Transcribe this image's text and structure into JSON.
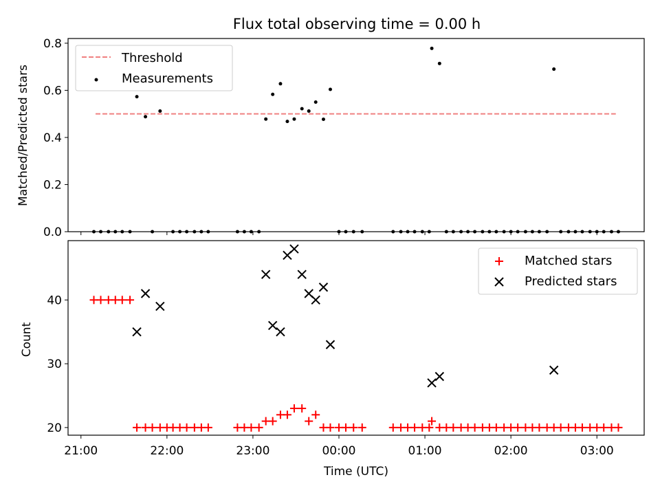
{
  "chart_data": [
    {
      "type": "scatter",
      "title": "Flux total observing time = 0.00 h",
      "ylabel": "Matched/Predicted stars",
      "xlabel": "",
      "ylim": [
        0,
        0.82
      ],
      "yticks": [
        0.0,
        0.2,
        0.4,
        0.6,
        0.8
      ],
      "ytick_labels": [
        "0.0",
        "0.2",
        "0.4",
        "0.6",
        "0.8"
      ],
      "grid": false,
      "legend_position": "top-left",
      "legend": [
        "Threshold",
        "Measurements"
      ],
      "threshold": {
        "name": "Threshold",
        "value": 0.5,
        "x_range": [
          21.17,
          27.22
        ],
        "color": "#f08080",
        "style": "dashed"
      },
      "series": [
        {
          "name": "Measurements",
          "color": "#000000",
          "points": [
            [
              21.15,
              0
            ],
            [
              21.23,
              0
            ],
            [
              21.32,
              0
            ],
            [
              21.4,
              0
            ],
            [
              21.48,
              0
            ],
            [
              21.57,
              0
            ],
            [
              21.65,
              0.573
            ],
            [
              21.75,
              0.488
            ],
            [
              21.83,
              0
            ],
            [
              21.92,
              0.512
            ],
            [
              22.07,
              0
            ],
            [
              22.15,
              0
            ],
            [
              22.23,
              0
            ],
            [
              22.32,
              0
            ],
            [
              22.4,
              0
            ],
            [
              22.48,
              0
            ],
            [
              22.82,
              0
            ],
            [
              22.9,
              0
            ],
            [
              22.98,
              0
            ],
            [
              23.07,
              0
            ],
            [
              23.15,
              0.478
            ],
            [
              23.23,
              0.583
            ],
            [
              23.32,
              0.628
            ],
            [
              23.4,
              0.468
            ],
            [
              23.48,
              0.478
            ],
            [
              23.57,
              0.522
            ],
            [
              23.65,
              0.512
            ],
            [
              23.73,
              0.55
            ],
            [
              23.82,
              0.477
            ],
            [
              23.9,
              0.604
            ],
            [
              24.0,
              0
            ],
            [
              24.08,
              0
            ],
            [
              24.17,
              0
            ],
            [
              24.27,
              0
            ],
            [
              24.63,
              0
            ],
            [
              24.72,
              0
            ],
            [
              24.8,
              0
            ],
            [
              24.88,
              0
            ],
            [
              24.97,
              0
            ],
            [
              25.05,
              0
            ],
            [
              25.08,
              0.778
            ],
            [
              25.17,
              0.714
            ],
            [
              25.25,
              0
            ],
            [
              25.33,
              0
            ],
            [
              25.42,
              0
            ],
            [
              25.5,
              0
            ],
            [
              25.58,
              0
            ],
            [
              25.67,
              0
            ],
            [
              25.75,
              0
            ],
            [
              25.83,
              0
            ],
            [
              25.92,
              0
            ],
            [
              26.0,
              0
            ],
            [
              26.08,
              0
            ],
            [
              26.17,
              0
            ],
            [
              26.25,
              0
            ],
            [
              26.33,
              0
            ],
            [
              26.42,
              0
            ],
            [
              26.5,
              0.69
            ],
            [
              26.58,
              0
            ],
            [
              26.67,
              0
            ],
            [
              26.75,
              0
            ],
            [
              26.83,
              0
            ],
            [
              26.92,
              0
            ],
            [
              27.0,
              0
            ],
            [
              27.08,
              0
            ],
            [
              27.17,
              0
            ],
            [
              27.25,
              0
            ]
          ]
        }
      ]
    },
    {
      "type": "scatter",
      "title": "",
      "xlabel": "Time (UTC)",
      "ylabel": "Count",
      "xlim": [
        20.85,
        27.55
      ],
      "ylim": [
        18.8,
        49.3
      ],
      "yticks": [
        20,
        30,
        40
      ],
      "ytick_labels": [
        "20",
        "30",
        "40"
      ],
      "xticks": [
        21,
        22,
        23,
        24,
        25,
        26,
        27
      ],
      "xtick_labels": [
        "21:00",
        "22:00",
        "23:00",
        "00:00",
        "01:00",
        "02:00",
        "03:00"
      ],
      "grid": false,
      "legend_position": "top-right",
      "legend": [
        "Matched stars",
        "Predicted stars"
      ],
      "series": [
        {
          "name": "Matched stars",
          "color": "#ff0000",
          "marker": "plus",
          "points": [
            [
              21.15,
              40
            ],
            [
              21.23,
              40
            ],
            [
              21.32,
              40
            ],
            [
              21.4,
              40
            ],
            [
              21.48,
              40
            ],
            [
              21.57,
              40
            ],
            [
              21.65,
              20
            ],
            [
              21.75,
              20
            ],
            [
              21.83,
              20
            ],
            [
              21.92,
              20
            ],
            [
              22.0,
              20
            ],
            [
              22.07,
              20
            ],
            [
              22.15,
              20
            ],
            [
              22.23,
              20
            ],
            [
              22.32,
              20
            ],
            [
              22.4,
              20
            ],
            [
              22.48,
              20
            ],
            [
              22.82,
              20
            ],
            [
              22.9,
              20
            ],
            [
              22.98,
              20
            ],
            [
              23.07,
              20
            ],
            [
              23.15,
              21
            ],
            [
              23.23,
              21
            ],
            [
              23.32,
              22
            ],
            [
              23.4,
              22
            ],
            [
              23.48,
              23
            ],
            [
              23.57,
              23
            ],
            [
              23.65,
              21
            ],
            [
              23.73,
              22
            ],
            [
              23.82,
              20
            ],
            [
              23.9,
              20
            ],
            [
              24.0,
              20
            ],
            [
              24.08,
              20
            ],
            [
              24.17,
              20
            ],
            [
              24.27,
              20
            ],
            [
              24.63,
              20
            ],
            [
              24.72,
              20
            ],
            [
              24.8,
              20
            ],
            [
              24.88,
              20
            ],
            [
              24.97,
              20
            ],
            [
              25.05,
              20
            ],
            [
              25.08,
              21
            ],
            [
              25.17,
              20
            ],
            [
              25.25,
              20
            ],
            [
              25.33,
              20
            ],
            [
              25.42,
              20
            ],
            [
              25.5,
              20
            ],
            [
              25.58,
              20
            ],
            [
              25.67,
              20
            ],
            [
              25.75,
              20
            ],
            [
              25.83,
              20
            ],
            [
              25.92,
              20
            ],
            [
              26.0,
              20
            ],
            [
              26.08,
              20
            ],
            [
              26.17,
              20
            ],
            [
              26.25,
              20
            ],
            [
              26.33,
              20
            ],
            [
              26.42,
              20
            ],
            [
              26.5,
              20
            ],
            [
              26.58,
              20
            ],
            [
              26.67,
              20
            ],
            [
              26.75,
              20
            ],
            [
              26.83,
              20
            ],
            [
              26.92,
              20
            ],
            [
              27.0,
              20
            ],
            [
              27.08,
              20
            ],
            [
              27.17,
              20
            ],
            [
              27.25,
              20
            ]
          ]
        },
        {
          "name": "Predicted stars",
          "color": "#000000",
          "marker": "x",
          "points": [
            [
              21.65,
              35
            ],
            [
              21.75,
              41
            ],
            [
              21.92,
              39
            ],
            [
              23.15,
              44
            ],
            [
              23.23,
              36
            ],
            [
              23.32,
              35
            ],
            [
              23.4,
              47
            ],
            [
              23.48,
              48
            ],
            [
              23.57,
              44
            ],
            [
              23.65,
              41
            ],
            [
              23.73,
              40
            ],
            [
              23.82,
              42
            ],
            [
              23.9,
              33
            ],
            [
              25.08,
              27
            ],
            [
              25.17,
              28
            ],
            [
              26.5,
              29
            ]
          ]
        }
      ]
    }
  ]
}
